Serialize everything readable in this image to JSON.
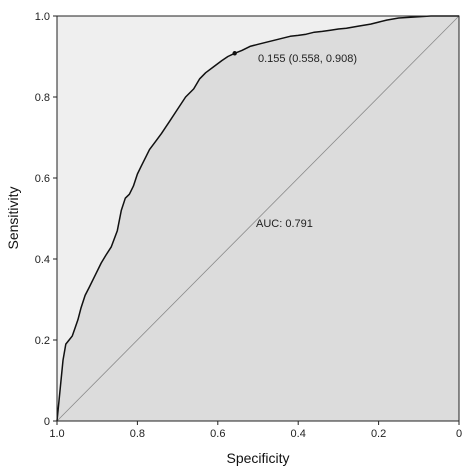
{
  "chart_data": {
    "type": "line",
    "xlabel": "Specificity",
    "ylabel": "Sensitivity",
    "xlim": [
      1.0,
      0.0
    ],
    "ylim": [
      0.0,
      1.0
    ],
    "x_ticks": [
      "1.0",
      "0.8",
      "0.6",
      "0.4",
      "0.2",
      "0"
    ],
    "y_ticks": [
      "0",
      "0.2",
      "0.4",
      "0.6",
      "0.8",
      "1.0"
    ],
    "grid": false,
    "colors": {
      "plot_background": "#efefef",
      "under_curve_fill": "#dcdcdc",
      "curve": "#111111",
      "diagonal": "#8a8a8a"
    },
    "series": [
      {
        "x": [
          1.0,
          0.998,
          0.995,
          0.99,
          0.985,
          0.978,
          0.97,
          0.962,
          0.955,
          0.948,
          0.94,
          0.93,
          0.92,
          0.905,
          0.89,
          0.878,
          0.865,
          0.85,
          0.84,
          0.83,
          0.82,
          0.81,
          0.8,
          0.79,
          0.78,
          0.77,
          0.755,
          0.74,
          0.72,
          0.7,
          0.68,
          0.66,
          0.645,
          0.63,
          0.61,
          0.59,
          0.575,
          0.558,
          0.54,
          0.52,
          0.5,
          0.48,
          0.46,
          0.44,
          0.42,
          0.4,
          0.38,
          0.36,
          0.34,
          0.32,
          0.3,
          0.28,
          0.25,
          0.22,
          0.2,
          0.18,
          0.15,
          0.12,
          0.1,
          0.07,
          0.05,
          0.03,
          0.01,
          0.0
        ],
        "y": [
          0.0,
          0.02,
          0.05,
          0.1,
          0.15,
          0.19,
          0.2,
          0.21,
          0.23,
          0.25,
          0.28,
          0.31,
          0.33,
          0.36,
          0.39,
          0.41,
          0.43,
          0.47,
          0.52,
          0.55,
          0.56,
          0.58,
          0.61,
          0.63,
          0.65,
          0.67,
          0.69,
          0.71,
          0.74,
          0.77,
          0.8,
          0.82,
          0.845,
          0.86,
          0.875,
          0.89,
          0.9,
          0.908,
          0.915,
          0.925,
          0.93,
          0.935,
          0.94,
          0.945,
          0.95,
          0.952,
          0.955,
          0.96,
          0.962,
          0.965,
          0.968,
          0.97,
          0.975,
          0.98,
          0.985,
          0.99,
          0.995,
          0.997,
          0.998,
          1.0,
          1.0,
          1.0,
          1.0,
          1.0
        ]
      }
    ],
    "highlight_point": {
      "x": 0.558,
      "y": 0.908
    },
    "annotations": {
      "point_label": "0.155 (0.558, 0.908)",
      "auc_label": "AUC: 0.791"
    }
  }
}
